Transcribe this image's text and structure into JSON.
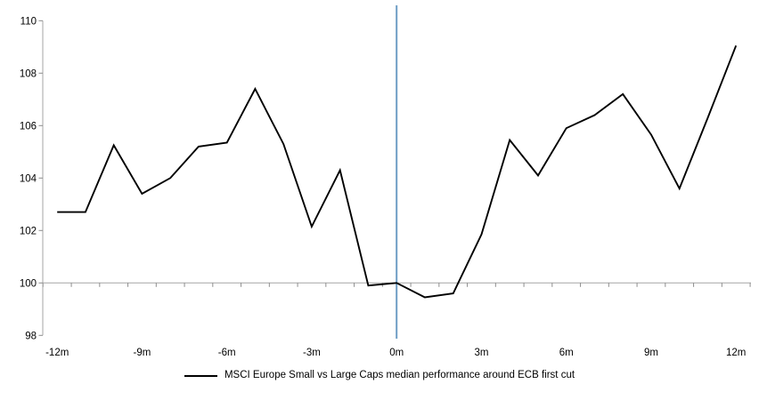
{
  "chart_data": {
    "type": "line",
    "title": "",
    "x": [
      -12,
      -11,
      -10,
      -9,
      -8,
      -7,
      -6,
      -5,
      -4,
      -3,
      -2,
      -1,
      0,
      1,
      2,
      3,
      4,
      5,
      6,
      7,
      8,
      9,
      10,
      11,
      12
    ],
    "series": [
      {
        "name": "MSCI Europe Small vs Large Caps median performance around ECB first cut",
        "color": "#000000",
        "values": [
          102.7,
          102.7,
          105.25,
          103.4,
          104.0,
          105.2,
          105.35,
          107.4,
          105.3,
          102.15,
          104.3,
          99.9,
          100.0,
          99.45,
          99.6,
          101.85,
          105.45,
          104.1,
          105.9,
          106.4,
          107.2,
          105.65,
          103.6,
          106.3,
          109.05
        ]
      }
    ],
    "x_tick_positions": [
      -12,
      -9,
      -6,
      -3,
      0,
      3,
      6,
      9,
      12
    ],
    "x_tick_labels": [
      "-12m",
      "-9m",
      "-6m",
      "-3m",
      "0m",
      "3m",
      "6m",
      "9m",
      "12m"
    ],
    "y_ticks": [
      98,
      100,
      102,
      104,
      106,
      108,
      110
    ],
    "ylim": [
      98,
      110
    ],
    "baseline_y": 100,
    "event_line": {
      "x": 0,
      "color": "#6D9DC5"
    },
    "grid": "baseline-only",
    "legend_position": "bottom",
    "axis_color": "#A6A6A6",
    "tick_color": "#8C8C8C",
    "label_color": "#000000"
  },
  "legend": {
    "label": "MSCI Europe Small vs Large Caps median performance around ECB first cut"
  }
}
